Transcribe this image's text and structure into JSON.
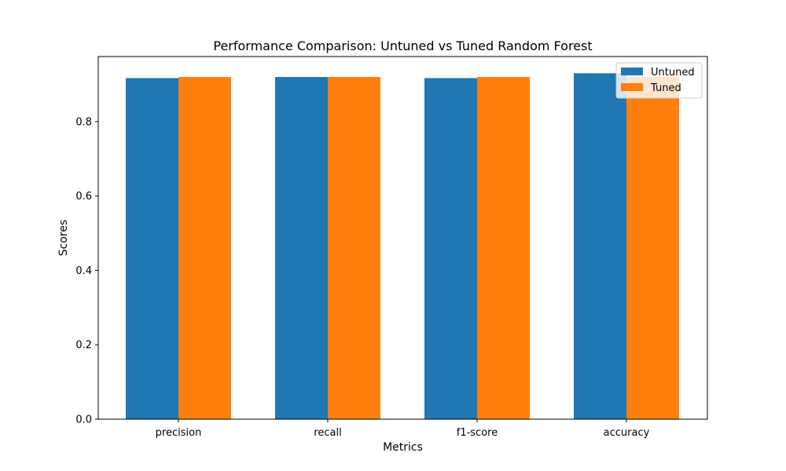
{
  "chart_data": {
    "type": "bar",
    "title": "Performance Comparison: Untuned vs Tuned Random Forest",
    "xlabel": "Metrics",
    "ylabel": "Scores",
    "categories": [
      "precision",
      "recall",
      "f1-score",
      "accuracy"
    ],
    "series": [
      {
        "name": "Untuned",
        "color": "#1f77b4",
        "values": [
          0.917,
          0.92,
          0.917,
          0.93
        ]
      },
      {
        "name": "Tuned",
        "color": "#ff7f0e",
        "values": [
          0.92,
          0.92,
          0.92,
          0.92
        ]
      }
    ],
    "ylim": [
      0,
      0.975
    ],
    "yticks": [
      0.0,
      0.2,
      0.4,
      0.6,
      0.8
    ],
    "ytick_labels": [
      "0.0",
      "0.2",
      "0.4",
      "0.6",
      "0.8"
    ],
    "grid": false,
    "legend_position": "top-right"
  }
}
